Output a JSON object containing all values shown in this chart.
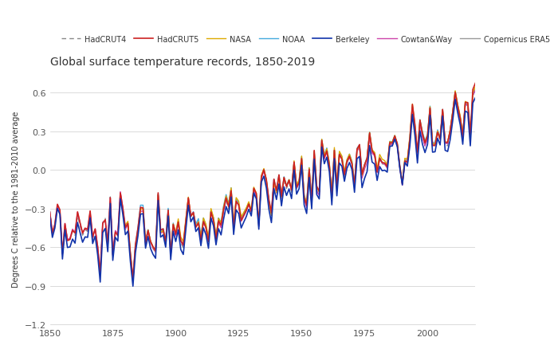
{
  "title": "Global surface temperature records, 1850-2019",
  "ylabel": "Degrees C relative to the 1981-2010 average",
  "xlim": [
    1850,
    2019
  ],
  "ylim": [
    -1.2,
    0.75
  ],
  "yticks": [
    -1.2,
    -0.9,
    -0.6,
    -0.3,
    0.0,
    0.3,
    0.6
  ],
  "xticks": [
    1850,
    1875,
    1900,
    1925,
    1950,
    1975,
    2000
  ],
  "background_color": "#ffffff",
  "series": [
    {
      "name": "HadCRUT4",
      "color": "#888888",
      "lw": 1.0,
      "ls": "dashed",
      "zorder": 2
    },
    {
      "name": "HadCRUT5",
      "color": "#cc2222",
      "lw": 1.2,
      "ls": "solid",
      "zorder": 5
    },
    {
      "name": "NASA",
      "color": "#ddaa00",
      "lw": 1.0,
      "ls": "solid",
      "zorder": 4
    },
    {
      "name": "NOAA",
      "color": "#44aadd",
      "lw": 1.0,
      "ls": "solid",
      "zorder": 3
    },
    {
      "name": "Berkeley",
      "color": "#1133aa",
      "lw": 1.2,
      "ls": "solid",
      "zorder": 6
    },
    {
      "name": "Cowtan&Way",
      "color": "#cc44aa",
      "lw": 1.0,
      "ls": "solid",
      "zorder": 3
    },
    {
      "name": "Copernicus ERA5",
      "color": "#999999",
      "lw": 1.0,
      "ls": "solid",
      "zorder": 2
    }
  ]
}
